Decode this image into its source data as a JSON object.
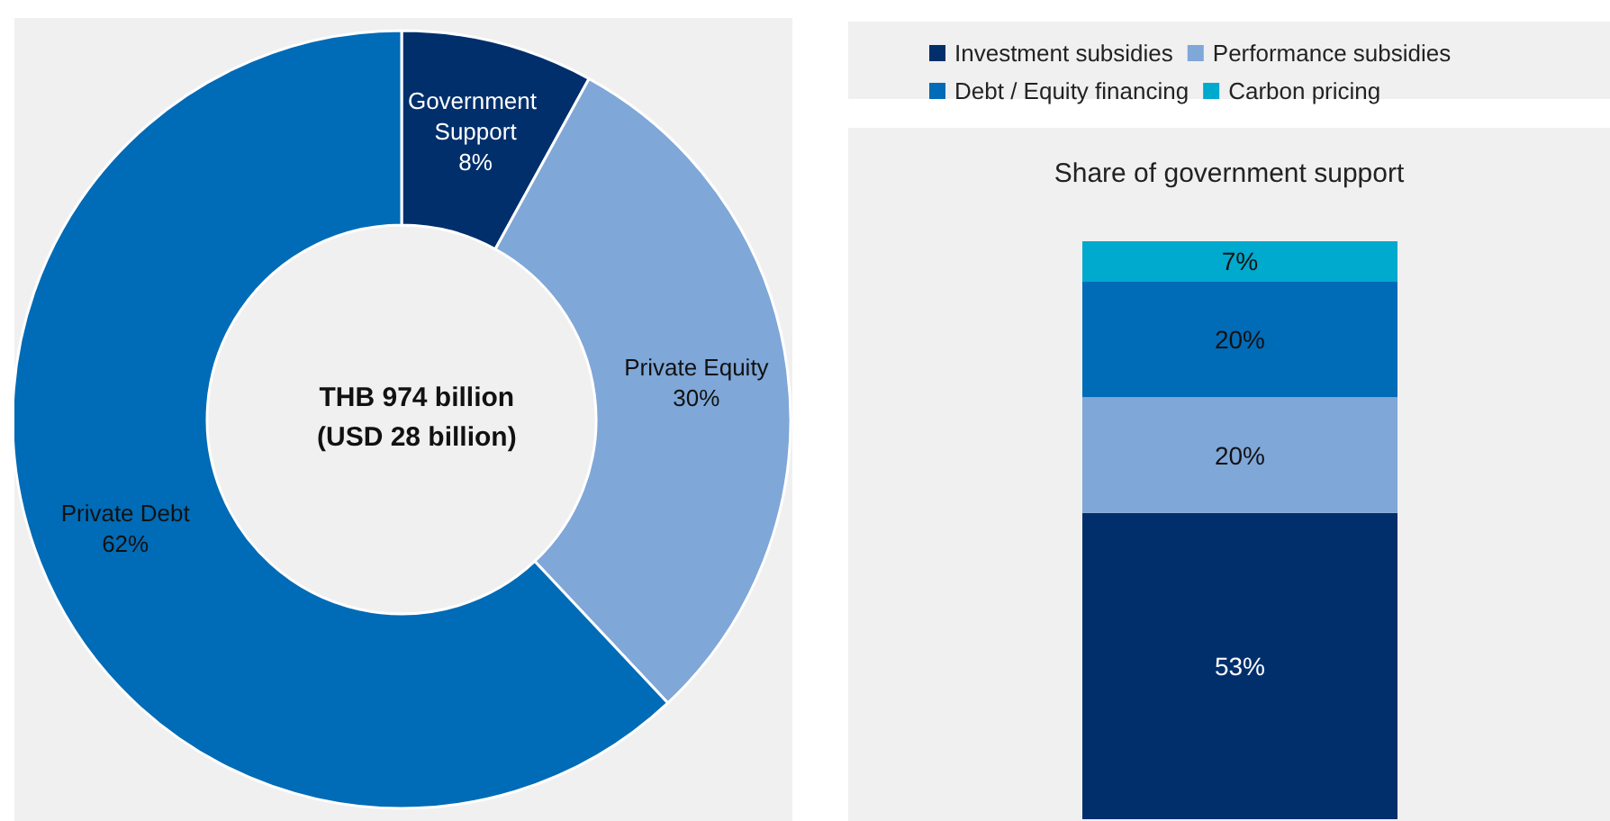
{
  "chart_data": [
    {
      "type": "donut",
      "categories": [
        "Government Support",
        "Private Equity",
        "Private Debt"
      ],
      "values": [
        8,
        30,
        62
      ],
      "colors": [
        "#002f6c",
        "#7fa7d8",
        "#006bb6"
      ],
      "value_labels": [
        "8%",
        "30%",
        "62%"
      ],
      "annotations": [
        "THB 974 billion\n(USD 28 billion)"
      ],
      "legend": false
    },
    {
      "type": "bar",
      "title": "Share of government support",
      "categories": [
        null
      ],
      "stacked": true,
      "ylim": [
        0,
        100
      ],
      "tick_labels": false,
      "legend": "top",
      "series": [
        {
          "name": "Investment subsidies",
          "color": "#002f6c",
          "values": [
            53
          ],
          "value_labels": [
            "53%"
          ]
        },
        {
          "name": "Performance subsidies",
          "color": "#7fa7d8",
          "values": [
            20
          ],
          "value_labels": [
            "20%"
          ]
        },
        {
          "name": "Debt / Equity financing",
          "color": "#006bb6",
          "values": [
            20
          ],
          "value_labels": [
            "20%"
          ]
        },
        {
          "name": "Carbon pricing",
          "color": "#00a9ce",
          "values": [
            7
          ],
          "value_labels": [
            "7%"
          ]
        }
      ]
    }
  ]
}
